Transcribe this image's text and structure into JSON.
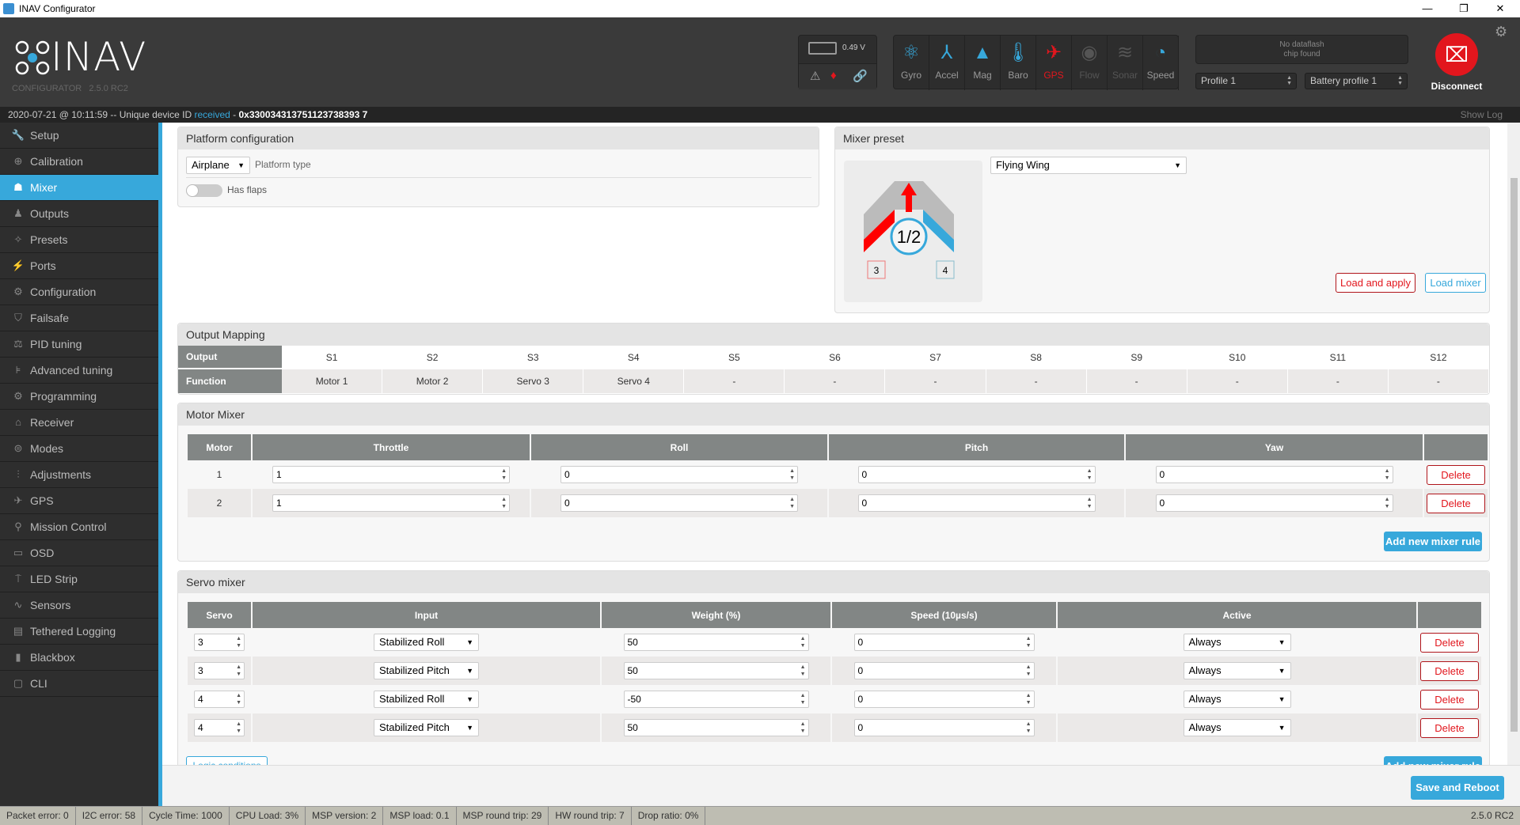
{
  "window": {
    "title": "INAV Configurator",
    "minimize": "—",
    "restore": "❐",
    "close": "✕"
  },
  "logo": {
    "name": "INAV",
    "sub": "CONFIGURATOR",
    "version": "2.5.0 RC2"
  },
  "battery": {
    "voltage": "0.49 V"
  },
  "sensors": [
    {
      "label": "Gyro",
      "icon": "gyro-icon",
      "glyph": "⚛",
      "state": "on"
    },
    {
      "label": "Accel",
      "icon": "accel-icon",
      "glyph": "⅄",
      "state": "on"
    },
    {
      "label": "Mag",
      "icon": "mag-icon",
      "glyph": "▲",
      "state": "on"
    },
    {
      "label": "Baro",
      "icon": "baro-icon",
      "glyph": "🌡",
      "state": "on"
    },
    {
      "label": "GPS",
      "icon": "gps-icon",
      "glyph": "✈",
      "state": "err"
    },
    {
      "label": "Flow",
      "icon": "flow-icon",
      "glyph": "◉",
      "state": "off"
    },
    {
      "label": "Sonar",
      "icon": "sonar-icon",
      "glyph": "≋",
      "state": "off"
    },
    {
      "label": "Speed",
      "icon": "speed-icon",
      "glyph": "◔",
      "state": "on"
    }
  ],
  "dataflash": {
    "line1": "No dataflash",
    "line2": "chip found"
  },
  "profile": "Profile 1",
  "battery_profile": "Battery profile 1",
  "disconnect": "Disconnect",
  "log": {
    "timestamp": "2020-07-21 @ 10:11:59",
    "msg": " -- Unique device ID ",
    "status": "received",
    "sep": " - ",
    "id": "0x330034313751123738393 7",
    "show_log": "Show Log"
  },
  "sidebar": [
    {
      "label": "Setup",
      "glyph": "🔧"
    },
    {
      "label": "Calibration",
      "glyph": "⊕"
    },
    {
      "label": "Mixer",
      "glyph": "☗",
      "active": true
    },
    {
      "label": "Outputs",
      "glyph": "♟"
    },
    {
      "label": "Presets",
      "glyph": "✧"
    },
    {
      "label": "Ports",
      "glyph": "⚡"
    },
    {
      "label": "Configuration",
      "glyph": "⚙"
    },
    {
      "label": "Failsafe",
      "glyph": "⛉"
    },
    {
      "label": "PID tuning",
      "glyph": "⚖"
    },
    {
      "label": "Advanced tuning",
      "glyph": "⊧"
    },
    {
      "label": "Programming",
      "glyph": "⚙"
    },
    {
      "label": "Receiver",
      "glyph": "⌂"
    },
    {
      "label": "Modes",
      "glyph": "⊜"
    },
    {
      "label": "Adjustments",
      "glyph": "⫶"
    },
    {
      "label": "GPS",
      "glyph": "✈"
    },
    {
      "label": "Mission Control",
      "glyph": "⚲"
    },
    {
      "label": "OSD",
      "glyph": "▭"
    },
    {
      "label": "LED Strip",
      "glyph": "⍑"
    },
    {
      "label": "Sensors",
      "glyph": "∿"
    },
    {
      "label": "Tethered Logging",
      "glyph": "▤"
    },
    {
      "label": "Blackbox",
      "glyph": "▮"
    },
    {
      "label": "CLI",
      "glyph": "▢"
    }
  ],
  "platform": {
    "title": "Platform configuration",
    "type_value": "Airplane",
    "type_label": "Platform type",
    "flaps_label": "Has flaps",
    "flaps_on": false
  },
  "preset": {
    "title": "Mixer preset",
    "value": "Flying Wing",
    "diagram": {
      "center": "1/2",
      "left": "3",
      "right": "4"
    },
    "load_apply": "Load and apply",
    "load_mixer": "Load mixer"
  },
  "output_mapping": {
    "title": "Output Mapping",
    "row1": "Output",
    "row2": "Function",
    "outputs": [
      "S1",
      "S2",
      "S3",
      "S4",
      "S5",
      "S6",
      "S7",
      "S8",
      "S9",
      "S10",
      "S11",
      "S12"
    ],
    "functions": [
      "Motor 1",
      "Motor 2",
      "Servo 3",
      "Servo 4",
      "-",
      "-",
      "-",
      "-",
      "-",
      "-",
      "-",
      "-"
    ]
  },
  "motor_mixer": {
    "title": "Motor Mixer",
    "headers": [
      "Motor",
      "Throttle",
      "Roll",
      "Pitch",
      "Yaw"
    ],
    "rows": [
      {
        "motor": "1",
        "throttle": "1",
        "roll": "0",
        "pitch": "0",
        "yaw": "0"
      },
      {
        "motor": "2",
        "throttle": "1",
        "roll": "0",
        "pitch": "0",
        "yaw": "0"
      }
    ],
    "delete": "Delete",
    "add": "Add new mixer rule"
  },
  "servo_mixer": {
    "title": "Servo mixer",
    "headers": [
      "Servo",
      "Input",
      "Weight (%)",
      "Speed (10µs/s)",
      "Active"
    ],
    "rows": [
      {
        "servo": "3",
        "input": "Stabilized Roll",
        "weight": "50",
        "speed": "0",
        "active": "Always"
      },
      {
        "servo": "3",
        "input": "Stabilized Pitch",
        "weight": "50",
        "speed": "0",
        "active": "Always"
      },
      {
        "servo": "4",
        "input": "Stabilized Roll",
        "weight": "-50",
        "speed": "0",
        "active": "Always"
      },
      {
        "servo": "4",
        "input": "Stabilized Pitch",
        "weight": "50",
        "speed": "0",
        "active": "Always"
      }
    ],
    "delete": "Delete",
    "logic": "Logic conditions",
    "add": "Add new mixer rule"
  },
  "save": "Save and Reboot",
  "status": [
    "Packet error: 0",
    "I2C error: 58",
    "Cycle Time: 1000",
    "CPU Load: 3%",
    "MSP version: 2",
    "MSP load: 0.1",
    "MSP round trip: 29",
    "HW round trip: 7",
    "Drop ratio: 0%"
  ],
  "version": "2.5.0 RC2",
  "colors": {
    "accent": "#37a8db",
    "error": "#e2161d"
  }
}
